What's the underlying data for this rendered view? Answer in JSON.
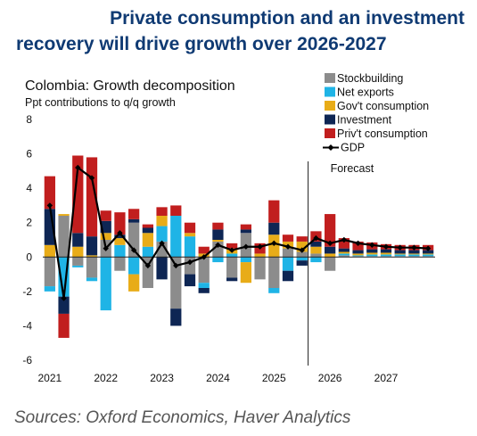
{
  "headline": {
    "line1": "Private consumption and an investment",
    "line2": "recovery will drive growth over 2026-2027"
  },
  "source": "Sources: Oxford Economics, Haver Analytics",
  "chart_data": {
    "type": "bar",
    "stacked": true,
    "title": "Colombia: Growth decomposition",
    "subtitle": "Ppt contributions to q/q growth",
    "ylim": [
      -6,
      8
    ],
    "yticks": [
      -6,
      -4,
      -2,
      0,
      2,
      4,
      6,
      8
    ],
    "year_labels": [
      "2021",
      "2022",
      "2023",
      "2024",
      "2025",
      "2026",
      "2027"
    ],
    "quarters": [
      "2021Q1",
      "2021Q2",
      "2021Q3",
      "2021Q4",
      "2022Q1",
      "2022Q2",
      "2022Q3",
      "2022Q4",
      "2023Q1",
      "2023Q2",
      "2023Q3",
      "2023Q4",
      "2024Q1",
      "2024Q2",
      "2024Q3",
      "2024Q4",
      "2025Q1",
      "2025Q2",
      "2025Q3",
      "2025Q4",
      "2026Q1",
      "2026Q2",
      "2026Q3",
      "2026Q4",
      "2027Q1",
      "2027Q2",
      "2027Q3",
      "2027Q4"
    ],
    "forecast_start_index": 19,
    "forecast_label": "Forecast",
    "legend_position": "top-right",
    "series": [
      {
        "name": "Stockbuilding",
        "color": "#8c8c8c",
        "values": [
          -1.7,
          2.4,
          -0.5,
          -1.2,
          1.0,
          -0.8,
          2.0,
          -1.8,
          0.9,
          -3.0,
          -1.0,
          -1.5,
          0.9,
          -1.2,
          1.4,
          -1.3,
          -1.8,
          0.5,
          0.3,
          0.2,
          -0.8,
          0.1,
          0.05,
          0.05,
          0.05,
          0.05,
          0.05,
          0.05
        ]
      },
      {
        "name": "Net exports",
        "color": "#1fb4e6",
        "values": [
          -0.3,
          -2.3,
          -0.1,
          -0.2,
          -3.1,
          0.7,
          -1.0,
          0.6,
          0.9,
          2.4,
          1.2,
          -0.3,
          -0.3,
          0.2,
          -0.3,
          0.0,
          -0.3,
          -0.8,
          -0.2,
          -0.3,
          0.0,
          0.1,
          0.05,
          0.1,
          0.1,
          0.1,
          0.1,
          0.1
        ]
      },
      {
        "name": "Gov't consumption",
        "color": "#e8ac18",
        "values": [
          0.7,
          0.1,
          0.6,
          0.1,
          0.4,
          0.4,
          -1.0,
          0.8,
          0.6,
          0.0,
          0.2,
          0.2,
          0.1,
          0.3,
          -1.2,
          0.2,
          1.3,
          0.4,
          0.6,
          0.4,
          0.2,
          0.1,
          0.1,
          0.1,
          0.1,
          0.05,
          0.05,
          0.05
        ]
      },
      {
        "name": "Investment",
        "color": "#0e2654",
        "values": [
          2.1,
          -1.0,
          0.8,
          1.1,
          0.7,
          0.2,
          0.2,
          0.3,
          -1.3,
          -1.0,
          -0.7,
          -0.3,
          0.6,
          -0.2,
          0.2,
          0.0,
          0.7,
          -0.6,
          -0.3,
          0.3,
          0.4,
          0.2,
          0.2,
          0.2,
          0.2,
          0.2,
          0.2,
          0.2
        ]
      },
      {
        "name": "Priv't consumption",
        "color": "#c11e1e",
        "values": [
          1.9,
          -1.4,
          4.5,
          4.6,
          0.6,
          1.3,
          0.6,
          0.2,
          0.5,
          0.6,
          0.6,
          0.4,
          0.4,
          0.3,
          0.3,
          0.6,
          1.3,
          0.4,
          0.3,
          0.6,
          1.9,
          0.6,
          0.5,
          0.4,
          0.3,
          0.3,
          0.3,
          0.3
        ]
      }
    ],
    "line_series": {
      "name": "GDP",
      "color": "#000000",
      "values": [
        3.0,
        -2.4,
        5.2,
        4.6,
        0.5,
        1.4,
        0.4,
        -0.5,
        0.8,
        -0.5,
        -0.3,
        0.0,
        0.7,
        0.4,
        0.6,
        0.6,
        0.8,
        0.6,
        0.4,
        1.1,
        0.8,
        1.0,
        0.8,
        0.7,
        0.6,
        0.55,
        0.55,
        0.5
      ]
    }
  }
}
